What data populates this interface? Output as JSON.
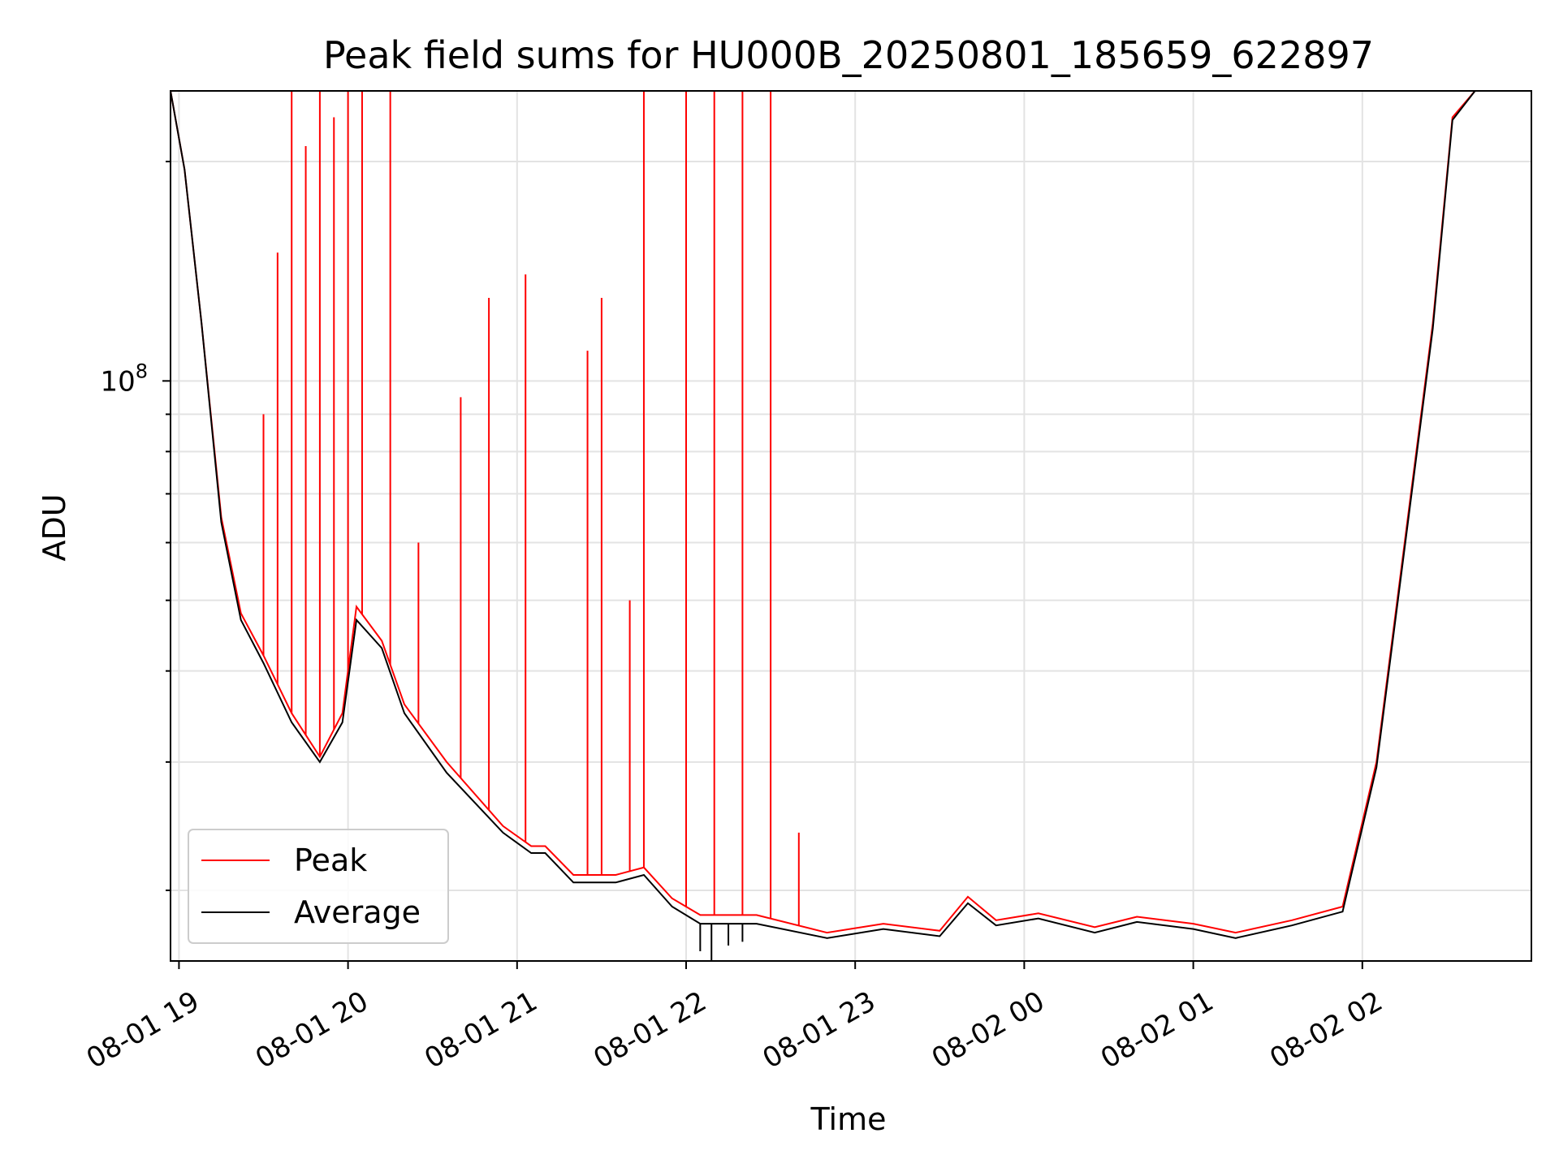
{
  "chart_data": {
    "type": "line",
    "title": "Peak field sums for HU000B_20250801_185659_622897",
    "xlabel": "Time",
    "ylabel": "ADU",
    "y_scale": "log",
    "xlim": [
      "2025-08-01 18:57",
      "2025-08-02 03:00"
    ],
    "ylim": [
      16000000,
      250000000
    ],
    "grid": true,
    "legend_position": "lower-left",
    "x_ticks": [
      {
        "t": "2025-08-01 19:00",
        "label": "08-01 19"
      },
      {
        "t": "2025-08-01 20:00",
        "label": "08-01 20"
      },
      {
        "t": "2025-08-01 21:00",
        "label": "08-01 21"
      },
      {
        "t": "2025-08-01 22:00",
        "label": "08-01 22"
      },
      {
        "t": "2025-08-01 23:00",
        "label": "08-01 23"
      },
      {
        "t": "2025-08-02 00:00",
        "label": "08-02 00"
      },
      {
        "t": "2025-08-02 01:00",
        "label": "08-02 01"
      },
      {
        "t": "2025-08-02 02:00",
        "label": "08-02 02"
      }
    ],
    "y_major_ticks": [
      {
        "value": 100000000,
        "base": "10",
        "exponent": "8"
      }
    ],
    "colors": {
      "peak": "#ff0000",
      "average": "#000000"
    },
    "series": [
      {
        "name": "Peak",
        "points": [
          [
            "2025-08-01 18:57",
            250000000
          ],
          [
            "2025-08-01 19:02",
            195000000
          ],
          [
            "2025-08-01 19:08",
            120000000
          ],
          [
            "2025-08-01 19:15",
            65000000
          ],
          [
            "2025-08-01 19:22",
            48000000
          ],
          [
            "2025-08-01 19:30",
            42000000
          ],
          [
            "2025-08-01 19:40",
            35000000
          ],
          [
            "2025-08-01 19:50",
            30500000
          ],
          [
            "2025-08-01 19:58",
            35000000
          ],
          [
            "2025-08-01 20:03",
            49000000
          ],
          [
            "2025-08-01 20:12",
            44000000
          ],
          [
            "2025-08-01 20:20",
            36000000
          ],
          [
            "2025-08-01 20:35",
            30000000
          ],
          [
            "2025-08-01 20:55",
            24500000
          ],
          [
            "2025-08-01 21:05",
            23000000
          ],
          [
            "2025-08-01 21:10",
            23000000
          ],
          [
            "2025-08-01 21:20",
            21000000
          ],
          [
            "2025-08-01 21:35",
            21000000
          ],
          [
            "2025-08-01 21:45",
            21500000
          ],
          [
            "2025-08-01 21:55",
            19500000
          ],
          [
            "2025-08-01 22:05",
            18500000
          ],
          [
            "2025-08-01 22:25",
            18500000
          ],
          [
            "2025-08-01 22:50",
            17500000
          ],
          [
            "2025-08-01 23:10",
            18000000
          ],
          [
            "2025-08-01 23:30",
            17600000
          ],
          [
            "2025-08-01 23:40",
            19600000
          ],
          [
            "2025-08-01 23:50",
            18200000
          ],
          [
            "2025-08-02 00:05",
            18600000
          ],
          [
            "2025-08-02 00:25",
            17800000
          ],
          [
            "2025-08-02 00:40",
            18400000
          ],
          [
            "2025-08-02 01:00",
            18000000
          ],
          [
            "2025-08-02 01:15",
            17500000
          ],
          [
            "2025-08-02 01:35",
            18200000
          ],
          [
            "2025-08-02 01:53",
            19000000
          ],
          [
            "2025-08-02 02:05",
            30000000
          ],
          [
            "2025-08-02 02:15",
            60000000
          ],
          [
            "2025-08-02 02:25",
            120000000
          ],
          [
            "2025-08-02 02:32",
            230000000
          ],
          [
            "2025-08-02 02:40",
            250000000
          ],
          [
            "2025-08-02 03:00",
            250000000
          ]
        ],
        "spikes": [
          [
            "2025-08-01 19:30",
            90000000
          ],
          [
            "2025-08-01 19:35",
            150000000
          ],
          [
            "2025-08-01 19:40",
            250000000
          ],
          [
            "2025-08-01 19:45",
            210000000
          ],
          [
            "2025-08-01 19:50",
            250000000
          ],
          [
            "2025-08-01 19:55",
            230000000
          ],
          [
            "2025-08-01 20:00",
            250000000
          ],
          [
            "2025-08-01 20:05",
            250000000
          ],
          [
            "2025-08-01 20:15",
            250000000
          ],
          [
            "2025-08-01 20:25",
            60000000
          ],
          [
            "2025-08-01 20:40",
            95000000
          ],
          [
            "2025-08-01 20:50",
            130000000
          ],
          [
            "2025-08-01 21:03",
            140000000
          ],
          [
            "2025-08-01 21:25",
            110000000
          ],
          [
            "2025-08-01 21:30",
            130000000
          ],
          [
            "2025-08-01 21:40",
            50000000
          ],
          [
            "2025-08-01 21:45",
            250000000
          ],
          [
            "2025-08-01 22:00",
            250000000
          ],
          [
            "2025-08-01 22:10",
            250000000
          ],
          [
            "2025-08-01 22:20",
            250000000
          ],
          [
            "2025-08-01 22:30",
            250000000
          ],
          [
            "2025-08-01 22:40",
            24000000
          ]
        ]
      },
      {
        "name": "Average",
        "points": [
          [
            "2025-08-01 18:57",
            250000000
          ],
          [
            "2025-08-01 19:02",
            195000000
          ],
          [
            "2025-08-01 19:08",
            120000000
          ],
          [
            "2025-08-01 19:15",
            64000000
          ],
          [
            "2025-08-01 19:22",
            47000000
          ],
          [
            "2025-08-01 19:30",
            41000000
          ],
          [
            "2025-08-01 19:40",
            34000000
          ],
          [
            "2025-08-01 19:50",
            30000000
          ],
          [
            "2025-08-01 19:58",
            34000000
          ],
          [
            "2025-08-01 20:03",
            47000000
          ],
          [
            "2025-08-01 20:12",
            43000000
          ],
          [
            "2025-08-01 20:20",
            35000000
          ],
          [
            "2025-08-01 20:35",
            29000000
          ],
          [
            "2025-08-01 20:55",
            24000000
          ],
          [
            "2025-08-01 21:05",
            22500000
          ],
          [
            "2025-08-01 21:10",
            22500000
          ],
          [
            "2025-08-01 21:20",
            20500000
          ],
          [
            "2025-08-01 21:35",
            20500000
          ],
          [
            "2025-08-01 21:45",
            21000000
          ],
          [
            "2025-08-01 21:55",
            19000000
          ],
          [
            "2025-08-01 22:05",
            18000000
          ],
          [
            "2025-08-01 22:25",
            18000000
          ],
          [
            "2025-08-01 22:50",
            17200000
          ],
          [
            "2025-08-01 23:10",
            17700000
          ],
          [
            "2025-08-01 23:30",
            17300000
          ],
          [
            "2025-08-01 23:40",
            19200000
          ],
          [
            "2025-08-01 23:50",
            17900000
          ],
          [
            "2025-08-02 00:05",
            18300000
          ],
          [
            "2025-08-02 00:25",
            17500000
          ],
          [
            "2025-08-02 00:40",
            18100000
          ],
          [
            "2025-08-02 01:00",
            17700000
          ],
          [
            "2025-08-02 01:15",
            17200000
          ],
          [
            "2025-08-02 01:35",
            17900000
          ],
          [
            "2025-08-02 01:53",
            18700000
          ],
          [
            "2025-08-02 02:05",
            29500000
          ],
          [
            "2025-08-02 02:15",
            59000000
          ],
          [
            "2025-08-02 02:25",
            118000000
          ],
          [
            "2025-08-02 02:32",
            228000000
          ],
          [
            "2025-08-02 02:40",
            250000000
          ],
          [
            "2025-08-02 03:00",
            250000000
          ]
        ],
        "dips": [
          [
            "2025-08-01 22:05",
            16500000
          ],
          [
            "2025-08-01 22:09",
            16000000
          ],
          [
            "2025-08-01 22:15",
            16800000
          ],
          [
            "2025-08-01 22:20",
            17000000
          ]
        ]
      }
    ]
  }
}
